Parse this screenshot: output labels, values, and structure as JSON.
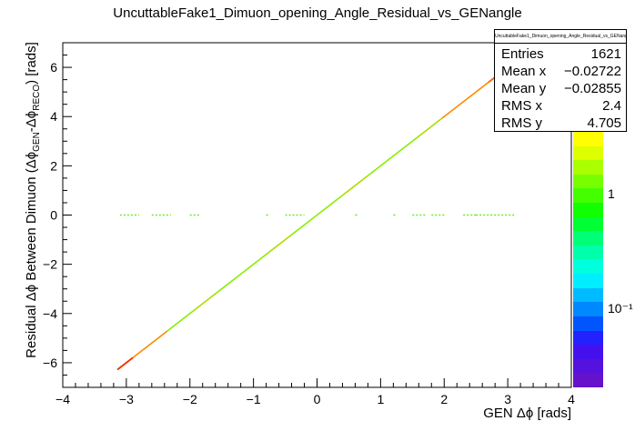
{
  "title": "UncuttableFake1_Dimuon_opening_Angle_Residual_vs_GENangle",
  "stats": {
    "title": "UncuttableFake1_Dimuon_opening_Angle_Residual_vs_GENangle",
    "rows": [
      {
        "key": "Entries",
        "value": "1621"
      },
      {
        "key": "Mean x",
        "value": "−0.02722"
      },
      {
        "key": "Mean y",
        "value": "−0.02855"
      },
      {
        "key": "RMS x",
        "value": "2.4"
      },
      {
        "key": "RMS y",
        "value": "4.705"
      }
    ]
  },
  "colorbar": {
    "labels": [
      "1",
      "10⁻¹"
    ],
    "colors": [
      "#ffff00",
      "#ddff00",
      "#aaff00",
      "#77ff00",
      "#44ff00",
      "#11ff00",
      "#00ff33",
      "#00ff77",
      "#00ffaa",
      "#00ffdd",
      "#00eeff",
      "#00bbff",
      "#0088ff",
      "#0055ff",
      "#2222ff",
      "#4411ee",
      "#5511dd",
      "#6611cc"
    ]
  },
  "chart_data": {
    "type": "heatmap",
    "title": "UncuttableFake1_Dimuon_opening_Angle_Residual_vs_GENangle",
    "xlabel": "GEN Δϕ [rads]",
    "ylabel": "Residual Δϕ Between Dimuon (ΔϕGEN-ΔϕRECO) [rads]",
    "ylabel_parts": {
      "pre": "Residual Δϕ Between Dimuon (Δϕ",
      "sub1": "GEN",
      "mid": "-Δϕ",
      "sub2": "RECO",
      "post": ") [rads]"
    },
    "xlim": [
      -4,
      4
    ],
    "ylim": [
      -7,
      7
    ],
    "x_ticks": [
      -4,
      -3,
      -2,
      -1,
      0,
      1,
      2,
      3,
      4
    ],
    "y_ticks": [
      -6,
      -4,
      -2,
      0,
      2,
      4,
      6
    ],
    "x_tick_labels": [
      "−4",
      "−3",
      "−2",
      "−1",
      "0",
      "1",
      "2",
      "3",
      "4"
    ],
    "y_tick_labels": [
      "−6",
      "−4",
      "−2",
      "0",
      "2",
      "4",
      "6"
    ],
    "diagonal_band": {
      "x_range": [
        -3.14,
        3.14
      ],
      "slope": 2.0
    },
    "flat_band": {
      "y": 0.0,
      "x_range": [
        -3.1,
        3.1
      ],
      "segments": [
        [
          -3.1,
          -2.8
        ],
        [
          -2.6,
          -2.3
        ],
        [
          -2.0,
          -1.85
        ],
        [
          -0.8,
          -0.75
        ],
        [
          -0.5,
          -0.2
        ],
        [
          0.6,
          0.65
        ],
        [
          1.2,
          1.25
        ],
        [
          1.5,
          1.7
        ],
        [
          1.8,
          2.0
        ],
        [
          2.3,
          2.5
        ],
        [
          2.5,
          3.1
        ]
      ]
    }
  }
}
